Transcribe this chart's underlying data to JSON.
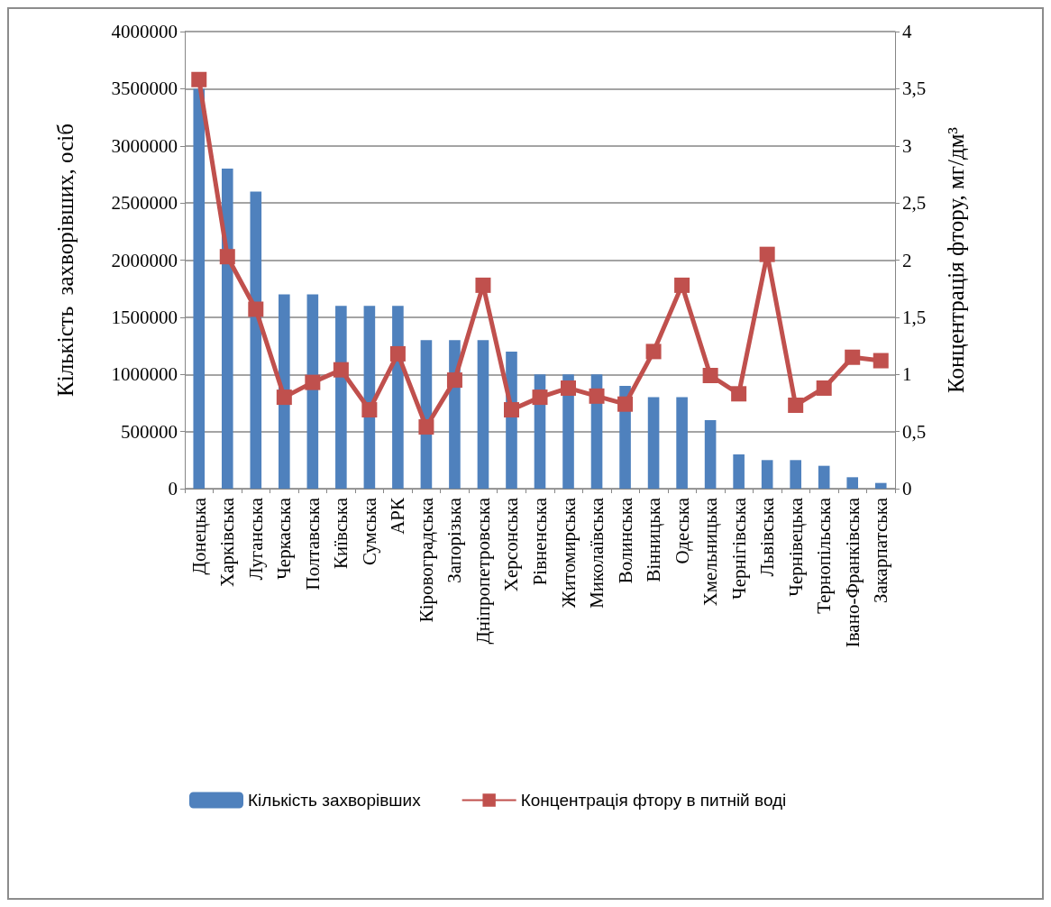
{
  "chart_data": {
    "type": "bar",
    "categories": [
      "Донецька",
      "Харківська",
      "Луганська",
      "Черкаська",
      "Полтавська",
      "Київська",
      "Сумська",
      "АРК",
      "Кіровоградська",
      "Запорізька",
      "Дніпропетровська",
      "Херсонська",
      "Рівненська",
      "Житомирська",
      "Миколаївська",
      "Волинська",
      "Вінницька",
      "Одеська",
      "Хмельницька",
      "Чернігівська",
      "Львівська",
      "Чернівецька",
      "Тернопільська",
      "Івано-Франківська",
      "Закарпатська"
    ],
    "series": [
      {
        "name": "Кількість захворівших",
        "color": "#4f81bd",
        "values": [
          3500000,
          2800000,
          2600000,
          1700000,
          1700000,
          1600000,
          1600000,
          1600000,
          1300000,
          1300000,
          1300000,
          1200000,
          1000000,
          1000000,
          1000000,
          900000,
          800000,
          800000,
          600000,
          300000,
          250000,
          250000,
          200000,
          100000,
          50000
        ]
      },
      {
        "name": "Концентрація фтору в питній воді",
        "type": "line",
        "axis": "y2",
        "color": "#c0504d",
        "marker": "square",
        "values": [
          3.58,
          2.03,
          1.57,
          0.8,
          0.93,
          1.04,
          0.69,
          1.18,
          0.54,
          0.95,
          1.78,
          0.69,
          0.8,
          0.88,
          0.81,
          0.74,
          1.2,
          1.78,
          0.99,
          0.83,
          2.05,
          0.73,
          0.88,
          1.15,
          1.12
        ]
      }
    ],
    "ylabel": "Кількість  захворівших, осіб",
    "y2label": "Концентрація фтору, мг/дм³",
    "ylim": [
      0,
      4000000
    ],
    "yticks": [
      0,
      500000,
      1000000,
      1500000,
      2000000,
      2500000,
      3000000,
      3500000,
      4000000
    ],
    "y2lim": [
      0,
      4
    ],
    "y2ticks": [
      0,
      {
        "value": 0.5,
        "label": "0,5"
      },
      1,
      {
        "value": 1.5,
        "label": "1,5"
      },
      2,
      {
        "value": 2.5,
        "label": "2,5"
      },
      3,
      {
        "value": 3.5,
        "label": "3,5"
      },
      4
    ],
    "grid": "y",
    "legend": "bottom"
  }
}
